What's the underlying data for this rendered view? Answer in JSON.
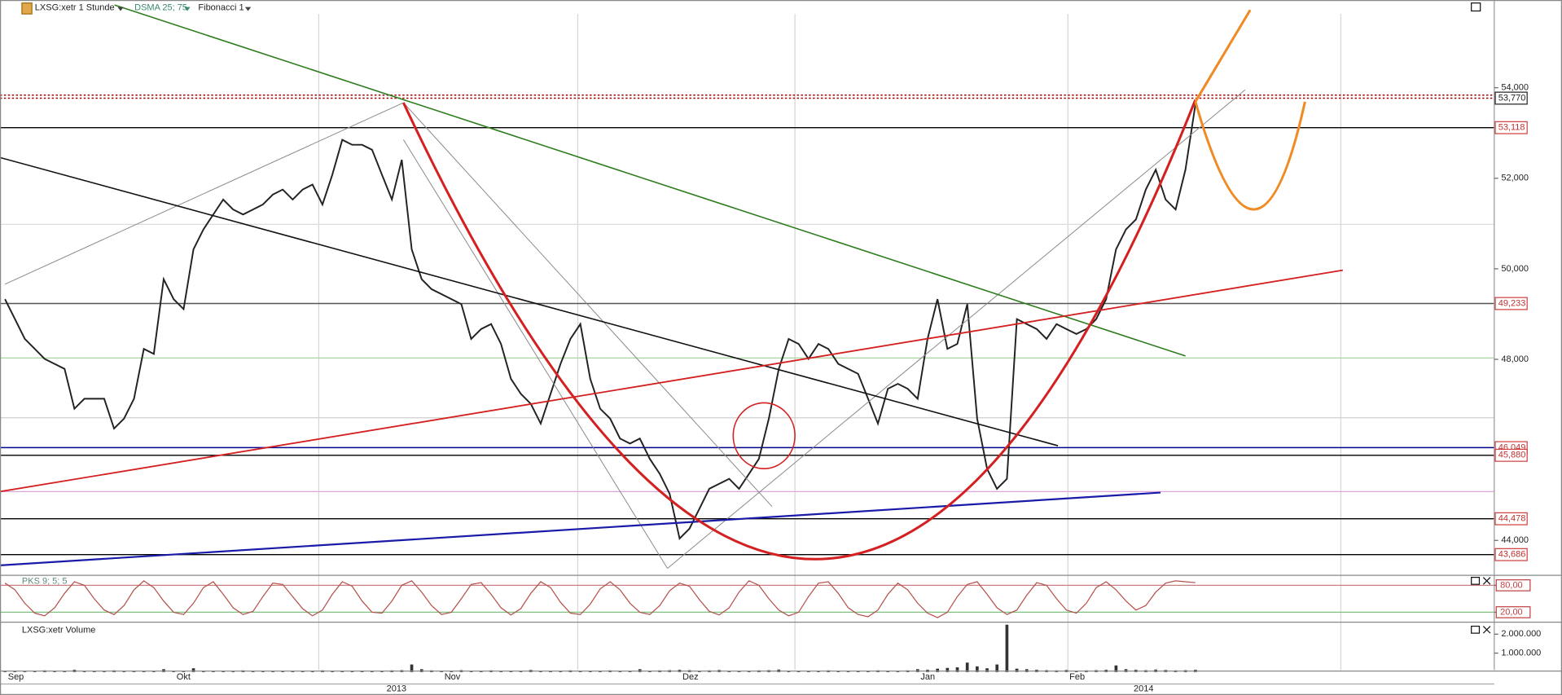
{
  "chart_data": [
    {
      "type": "line",
      "title": "LXSG:xetr 1 Stunde",
      "indicators": [
        "DSMA 25; 75",
        "Fibonacci 1"
      ],
      "color": "#222222",
      "categories": [
        null,
        "Sep",
        null,
        null,
        null,
        null,
        null,
        null,
        null,
        null,
        null,
        null,
        null,
        null,
        null,
        null,
        null,
        null,
        "Okt",
        null,
        null,
        null,
        null,
        null,
        null,
        null,
        null,
        null,
        null,
        null,
        null,
        null,
        null,
        null,
        null,
        null,
        null,
        null,
        null,
        null,
        null,
        null,
        null,
        null,
        null,
        "Nov",
        null,
        null,
        null,
        null,
        null,
        null,
        null,
        null,
        null,
        null,
        null,
        null,
        null,
        null,
        null,
        null,
        null,
        null,
        null,
        null,
        null,
        null,
        null,
        "Dez",
        null,
        null,
        null,
        null,
        null,
        null,
        null,
        null,
        null,
        null,
        null,
        null,
        null,
        null,
        null,
        null,
        null,
        null,
        null,
        null,
        null,
        null,
        null,
        "Jan",
        null,
        null,
        null,
        null,
        null,
        null,
        null,
        null,
        null,
        null,
        null,
        null,
        null,
        null,
        "Feb",
        null,
        null,
        null,
        null,
        null,
        null,
        null,
        null,
        null,
        null,
        null,
        null
      ],
      "values": [
        49330,
        48890,
        48450,
        48230,
        48010,
        47900,
        47790,
        46910,
        47130,
        47130,
        47130,
        46470,
        46690,
        47130,
        48230,
        48120,
        49770,
        49330,
        49110,
        50430,
        50870,
        51200,
        51530,
        51310,
        51200,
        51310,
        51420,
        51640,
        51750,
        51530,
        51750,
        51860,
        51420,
        52080,
        52850,
        52740,
        52740,
        52630,
        52080,
        51530,
        52410,
        50430,
        49770,
        49550,
        49440,
        49330,
        49220,
        48450,
        48670,
        48780,
        48340,
        47570,
        47240,
        47020,
        46580,
        47240,
        47900,
        48450,
        48780,
        47570,
        46910,
        46690,
        46250,
        46140,
        46250,
        45800,
        45470,
        45030,
        44040,
        44260,
        44700,
        45140,
        45250,
        45360,
        45140,
        45470,
        45800,
        46690,
        47790,
        48450,
        48340,
        48010,
        48340,
        48230,
        47900,
        47790,
        47680,
        47130,
        46580,
        47350,
        47460,
        47350,
        47130,
        48450,
        49330,
        48230,
        48340,
        49220,
        46690,
        45580,
        45140,
        45360,
        48890,
        48780,
        48670,
        48450,
        48780,
        48670,
        48560,
        48670,
        48890,
        49330,
        50430,
        50870,
        51090,
        51750,
        52190,
        51530,
        51310,
        52190,
        53630
      ],
      "year_labels": [
        "2013",
        "2014"
      ],
      "ylim": [
        43250,
        55630
      ],
      "yticks": [
        {
          "value": 54000,
          "label": "54,000"
        },
        {
          "value": 52000,
          "label": "52,000"
        },
        {
          "value": 50000,
          "label": "50,000"
        },
        {
          "value": 48000,
          "label": "48,000"
        },
        {
          "value": 44000,
          "label": "44,000"
        }
      ],
      "levels": [
        {
          "value": 53770,
          "label": "53,770",
          "color": "#a00000"
        },
        {
          "value": 53118,
          "label": "53,118",
          "color": "#000000"
        },
        {
          "value": 49233,
          "label": "49,233",
          "color": "#555555"
        },
        {
          "value": 46049,
          "label": "46,049",
          "color": "#00008b"
        },
        {
          "value": 45880,
          "label": "45,880",
          "color": "#000000"
        },
        {
          "value": 44478,
          "label": "44,478",
          "color": "#000000"
        },
        {
          "value": 43686,
          "label": "43,686",
          "color": "#000000"
        }
      ]
    },
    {
      "type": "line",
      "title": "PKS 9; 5; 5",
      "color": "#b5504a",
      "values": [
        85,
        70,
        40,
        18,
        12,
        30,
        62,
        88,
        80,
        50,
        25,
        15,
        35,
        70,
        90,
        75,
        45,
        20,
        15,
        40,
        75,
        88,
        60,
        30,
        15,
        22,
        55,
        85,
        82,
        55,
        28,
        12,
        25,
        60,
        88,
        78,
        45,
        20,
        18,
        45,
        80,
        90,
        65,
        35,
        15,
        20,
        50,
        82,
        86,
        60,
        30,
        14,
        28,
        62,
        88,
        75,
        42,
        18,
        15,
        38,
        72,
        88,
        70,
        40,
        20,
        15,
        35,
        68,
        85,
        78,
        48,
        22,
        14,
        30,
        65,
        90,
        80,
        50,
        25,
        12,
        20,
        55,
        85,
        88,
        62,
        30,
        15,
        10,
        25,
        60,
        85,
        70,
        40,
        18,
        8,
        20,
        55,
        82,
        88,
        60,
        30,
        15,
        25,
        58,
        86,
        80,
        50,
        25,
        18,
        40,
        75,
        88,
        70,
        45,
        25,
        35,
        65,
        85,
        90,
        88,
        86
      ],
      "ylim": [
        0,
        100
      ],
      "yticks": [
        {
          "value": 80,
          "label": "80,00"
        },
        {
          "value": 20,
          "label": "20,00"
        }
      ]
    },
    {
      "type": "bar",
      "title": "LXSG:xetr Volume",
      "color": "#333333",
      "values": [
        60000,
        80000,
        50000,
        70000,
        90000,
        60000,
        50000,
        120000,
        70000,
        60000,
        50000,
        90000,
        60000,
        80000,
        70000,
        60000,
        150000,
        70000,
        60000,
        200000,
        80000,
        70000,
        60000,
        50000,
        90000,
        70000,
        60000,
        80000,
        50000,
        70000,
        60000,
        80000,
        90000,
        70000,
        60000,
        50000,
        80000,
        70000,
        60000,
        90000,
        100000,
        400000,
        150000,
        90000,
        80000,
        70000,
        100000,
        60000,
        80000,
        90000,
        70000,
        80000,
        60000,
        110000,
        70000,
        60000,
        80000,
        90000,
        70000,
        60000,
        80000,
        90000,
        70000,
        60000,
        150000,
        80000,
        90000,
        100000,
        120000,
        100000,
        80000,
        90000,
        110000,
        70000,
        60000,
        80000,
        90000,
        100000,
        130000,
        80000,
        70000,
        60000,
        80000,
        90000,
        70000,
        60000,
        80000,
        70000,
        90000,
        80000,
        70000,
        90000,
        150000,
        120000,
        180000,
        220000,
        250000,
        500000,
        300000,
        200000,
        400000,
        2500000,
        180000,
        150000,
        120000,
        100000,
        90000,
        110000,
        80000,
        90000,
        100000,
        120000,
        350000,
        150000,
        120000,
        100000,
        130000,
        110000,
        90000,
        100000,
        120000
      ],
      "ylim": [
        0,
        2500000
      ],
      "yticks": [
        {
          "value": 2000000,
          "label": "2.000.000"
        },
        {
          "value": 1000000,
          "label": "1.000.000"
        }
      ]
    }
  ]
}
